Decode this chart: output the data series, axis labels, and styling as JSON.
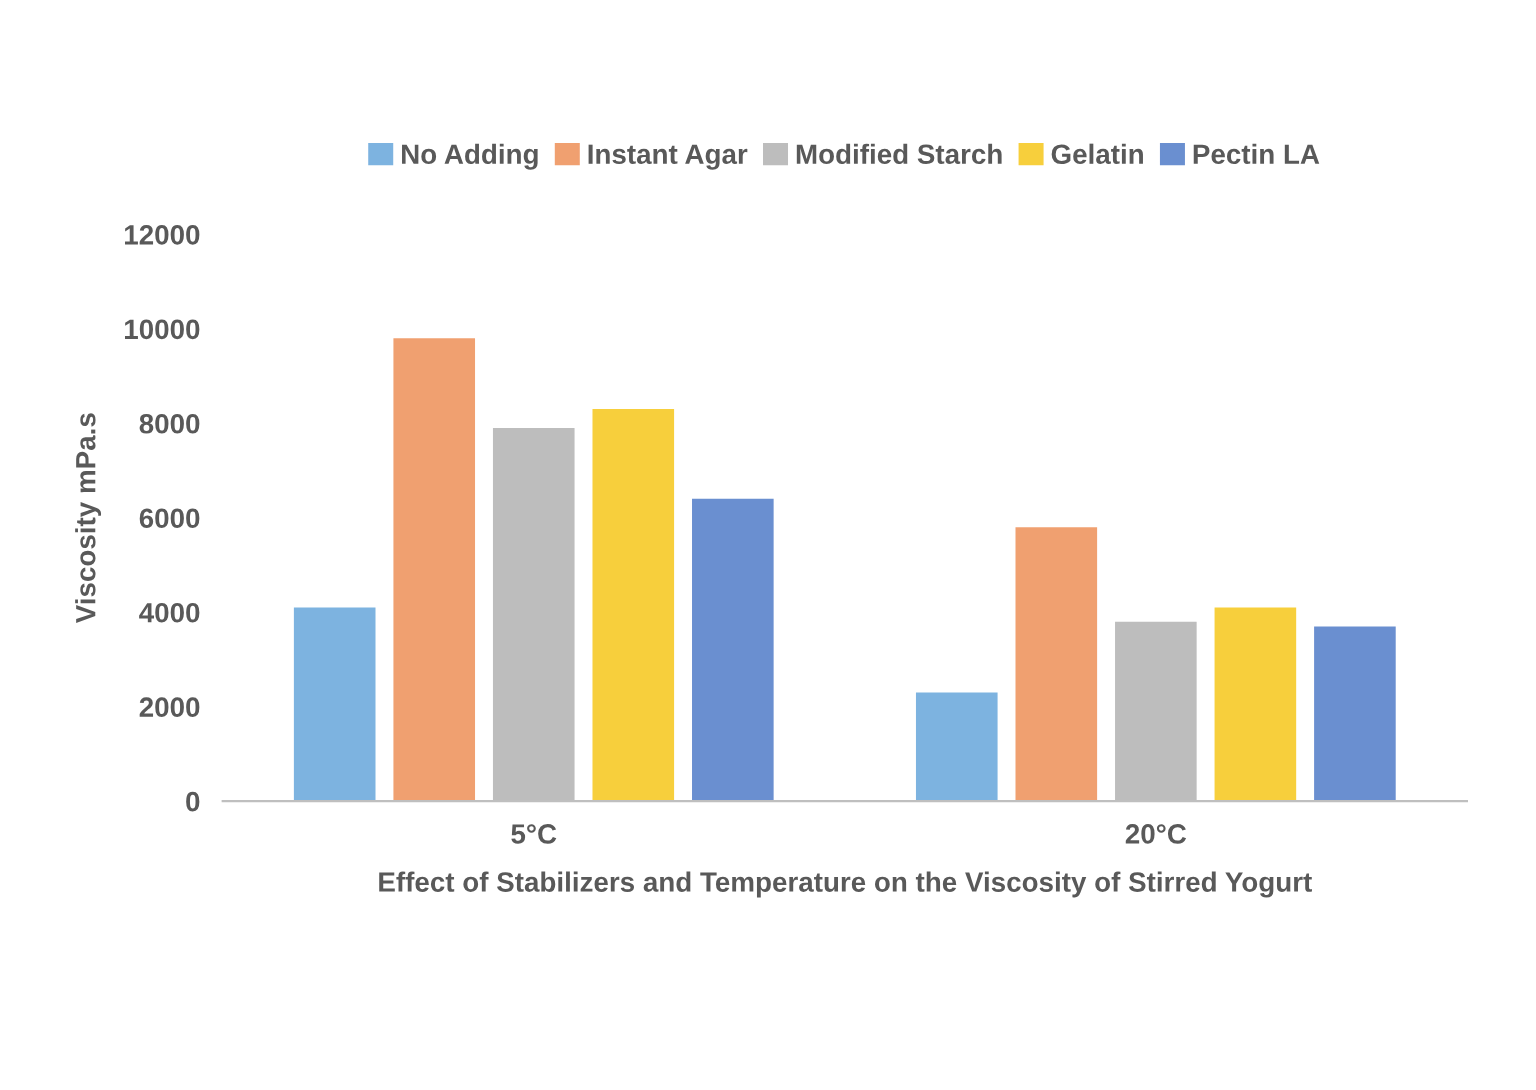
{
  "chart_data": {
    "type": "bar",
    "xlabel": "Effect of Stabilizers and Temperature on the Viscosity of Stirred Yogurt",
    "ylabel": "Viscosity mPa.s",
    "categories": [
      "5°C",
      "20°C"
    ],
    "series": [
      {
        "name": "No Adding",
        "color": "#7db3e0",
        "values": [
          4100,
          2300
        ]
      },
      {
        "name": "Instant Agar",
        "color": "#f0a070",
        "values": [
          9800,
          5800
        ]
      },
      {
        "name": "Modified Starch",
        "color": "#bdbdbd",
        "values": [
          7900,
          3800
        ]
      },
      {
        "name": "Gelatin",
        "color": "#f7cf3c",
        "values": [
          8300,
          4100
        ]
      },
      {
        "name": "Pectin LA",
        "color": "#6a8fd0",
        "values": [
          6400,
          3700
        ]
      }
    ],
    "ylim": [
      0,
      12000
    ],
    "yticks": [
      0,
      2000,
      4000,
      6000,
      8000,
      10000,
      12000
    ],
    "grid": false,
    "legend": "top"
  }
}
